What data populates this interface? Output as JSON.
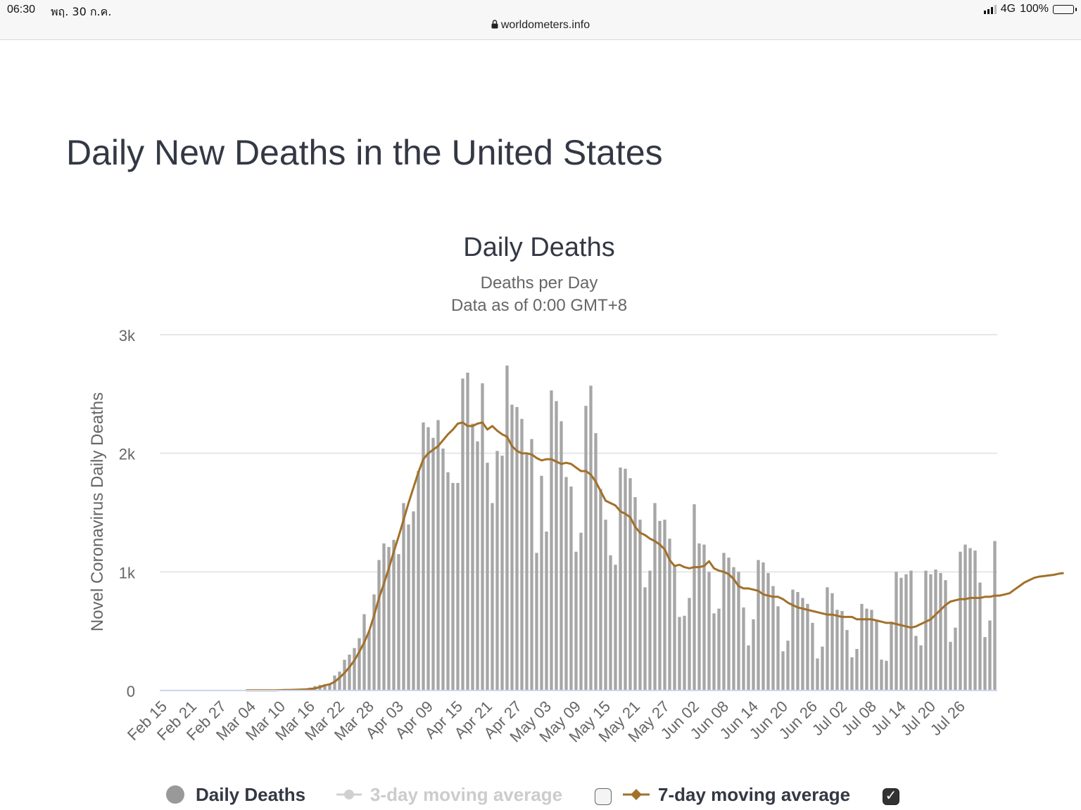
{
  "status_bar": {
    "time": "06:30",
    "date": "พฤ. 30 ก.ค.",
    "url": "worldometers.info",
    "network": "4G",
    "battery": "100%"
  },
  "page": {
    "title": "Daily New Deaths in the United States"
  },
  "colors": {
    "bars": "#a6a6a6",
    "avg7": "#a2702b",
    "avg3": "#d0d0d0",
    "grid": "#e6e6e6",
    "axis": "#ccd6eb",
    "text": "#333844"
  },
  "legend": {
    "daily": "Daily Deaths",
    "avg3": "3-day moving average",
    "avg7": "7-day moving average",
    "avg3_checked": false,
    "avg7_checked": true
  },
  "chart_data": {
    "type": "bar",
    "title": "Daily Deaths",
    "subtitle": "Deaths per Day",
    "subtitle2": "Data as of 0:00 GMT+8",
    "ylabel": "Novel Coronavirus Daily Deaths",
    "ylim": [
      0,
      3000
    ],
    "yticks": [
      0,
      1000,
      2000,
      3000
    ],
    "ytick_labels": [
      "0",
      "1k",
      "2k",
      "3k"
    ],
    "start_date": "Feb 15",
    "xtick_labels": [
      "Feb 15",
      "Feb 21",
      "Feb 27",
      "Mar 04",
      "Mar 10",
      "Mar 16",
      "Mar 22",
      "Mar 28",
      "Apr 03",
      "Apr 09",
      "Apr 15",
      "Apr 21",
      "Apr 27",
      "May 03",
      "May 09",
      "May 15",
      "May 21",
      "May 27",
      "Jun 02",
      "Jun 08",
      "Jun 14",
      "Jun 20",
      "Jun 26",
      "Jul 02",
      "Jul 08",
      "Jul 14",
      "Jul 20",
      "Jul 26"
    ],
    "xtick_every": 6,
    "series": [
      {
        "name": "Daily Deaths",
        "type": "bar",
        "values": [
          0,
          0,
          0,
          0,
          0,
          0,
          0,
          0,
          0,
          0,
          0,
          0,
          0,
          0,
          1,
          0,
          1,
          1,
          2,
          0,
          1,
          3,
          4,
          1,
          5,
          2,
          5,
          7,
          13,
          16,
          24,
          37,
          47,
          52,
          54,
          126,
          159,
          259,
          302,
          358,
          441,
          643,
          499,
          810,
          1100,
          1240,
          1210,
          1270,
          1150,
          1580,
          1400,
          1510,
          1850,
          2260,
          2220,
          2130,
          2280,
          2040,
          1840,
          1750,
          1750,
          2630,
          2680,
          2250,
          2100,
          2590,
          1920,
          1580,
          2020,
          1980,
          2740,
          2410,
          2390,
          2290,
          1990,
          2120,
          1160,
          1810,
          1340,
          2530,
          2440,
          2270,
          1800,
          1720,
          1170,
          1330,
          2400,
          2570,
          2170,
          1700,
          1440,
          1140,
          1060,
          1880,
          1870,
          1790,
          1630,
          1440,
          870,
          1010,
          1580,
          1430,
          1440,
          1280,
          1050,
          620,
          630,
          780,
          1570,
          1240,
          1230,
          1000,
          650,
          690,
          1160,
          1120,
          1040,
          1000,
          700,
          380,
          600,
          1100,
          1080,
          990,
          880,
          710,
          330,
          420,
          850,
          830,
          780,
          730,
          570,
          270,
          370,
          870,
          820,
          680,
          670,
          510,
          280,
          350,
          730,
          690,
          680,
          590,
          260,
          250,
          580,
          1000,
          950,
          980,
          1010,
          460,
          380,
          1010,
          980,
          1020,
          990,
          930,
          410,
          530,
          1170,
          1230,
          1200,
          1180,
          910,
          450,
          590,
          1260
        ]
      },
      {
        "name": "7-day moving average",
        "type": "line",
        "start": 17,
        "values": [
          1,
          1,
          1,
          1,
          2,
          2,
          2,
          3,
          4,
          4,
          6,
          7,
          9,
          12,
          18,
          28,
          43,
          52,
          73,
          108,
          148,
          196,
          254,
          325,
          405,
          500,
          630,
          780,
          900,
          1030,
          1170,
          1300,
          1440,
          1580,
          1710,
          1840,
          1950,
          2000,
          2030,
          2060,
          2110,
          2160,
          2200,
          2250,
          2260,
          2230,
          2230,
          2250,
          2260,
          2200,
          2230,
          2190,
          2160,
          2140,
          2060,
          2020,
          2000,
          2000,
          1990,
          1960,
          1940,
          1950,
          1950,
          1930,
          1910,
          1920,
          1910,
          1880,
          1850,
          1850,
          1820,
          1760,
          1680,
          1600,
          1580,
          1560,
          1510,
          1490,
          1460,
          1380,
          1330,
          1310,
          1280,
          1260,
          1230,
          1190,
          1100,
          1050,
          1060,
          1040,
          1030,
          1040,
          1040,
          1050,
          1090,
          1030,
          1010,
          1000,
          980,
          940,
          880,
          860,
          860,
          850,
          840,
          810,
          800,
          790,
          790,
          770,
          740,
          720,
          700,
          690,
          680,
          670,
          660,
          650,
          640,
          640,
          630,
          620,
          620,
          620,
          600,
          600,
          600,
          600,
          590,
          580,
          570,
          570,
          560,
          550,
          540,
          530,
          540,
          560,
          580,
          600,
          640,
          680,
          720,
          750,
          760,
          770,
          770,
          780,
          780,
          780,
          790,
          790,
          800,
          800,
          810,
          820,
          850,
          880,
          910,
          930,
          950,
          960,
          965,
          970,
          975,
          985,
          990
        ]
      }
    ]
  }
}
